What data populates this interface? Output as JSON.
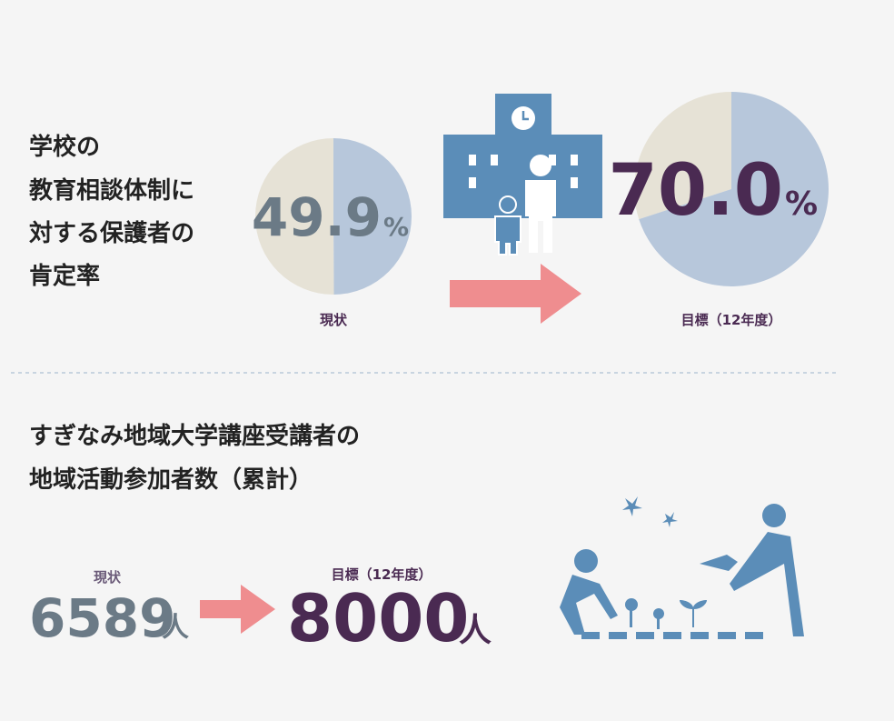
{
  "section1": {
    "title_lines": [
      "学校の",
      "教育相談体制に",
      "対する保護者の",
      "肯定率"
    ],
    "current": {
      "label": "現状",
      "value": 49.9,
      "unit": "%"
    },
    "target": {
      "label": "目標（12年度）",
      "value": {
        "value": 70,
        "label": "70.0"
      },
      "unit": "%"
    }
  },
  "section2": {
    "title_lines": [
      "すぎなみ地域大学講座受講者の",
      "地域活動参加者数（累計）"
    ],
    "current": {
      "label": "現状",
      "value": 6589,
      "unit": "人"
    },
    "target": {
      "label": "目標（12年度）",
      "value": 8000,
      "unit": "人"
    }
  }
}
